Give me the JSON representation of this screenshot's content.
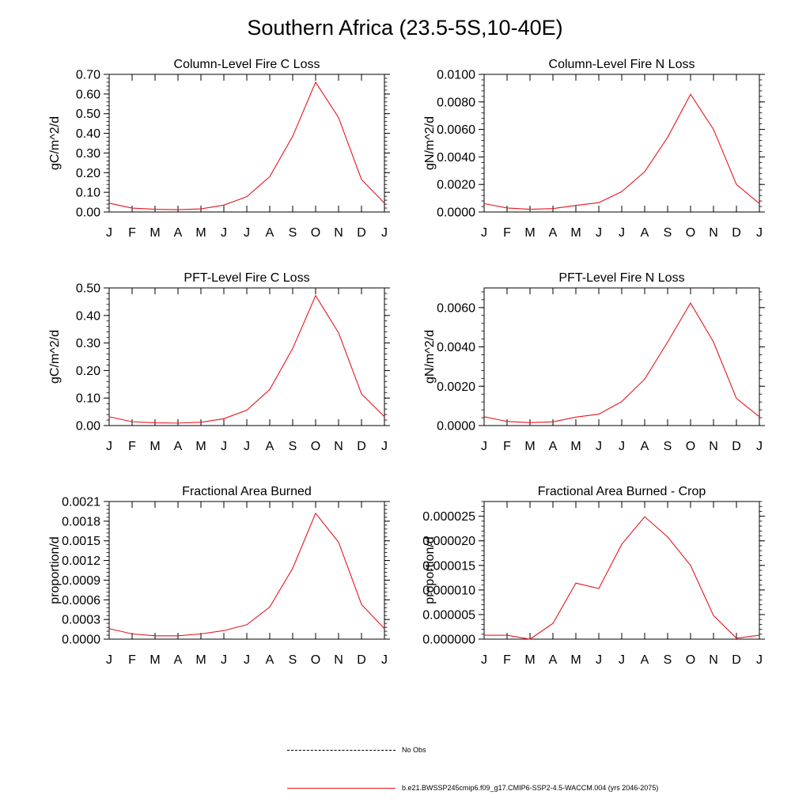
{
  "figure": {
    "title": "Southern Africa (23.5-5S,10-40E)",
    "line_color": "#e8141e",
    "legend": [
      {
        "label": "No Obs",
        "style": "dashed",
        "color": "#000000"
      },
      {
        "label": "b.e21.BWSSP245cmip6.f09_g17.CMIP6-SSP2-4.5-WACCM.004 (yrs 2046-2075)",
        "style": "solid",
        "color": "#e8141e"
      }
    ]
  },
  "chart_data": [
    {
      "type": "line",
      "title": "Column-Level Fire C Loss",
      "ylabel": "gC/m^2/d",
      "ylim": [
        0,
        0.7
      ],
      "yticks": [
        0,
        0.1,
        0.2,
        0.3,
        0.4,
        0.5,
        0.6,
        0.7
      ],
      "ytick_labels": [
        "0.00",
        "0.10",
        "0.20",
        "0.30",
        "0.40",
        "0.50",
        "0.60",
        "0.70"
      ],
      "categories": [
        "J",
        "F",
        "M",
        "A",
        "M",
        "J",
        "J",
        "A",
        "S",
        "O",
        "N",
        "D",
        "J"
      ],
      "values": [
        0.045,
        0.02,
        0.014,
        0.012,
        0.016,
        0.035,
        0.078,
        0.18,
        0.385,
        0.66,
        0.48,
        0.165,
        0.045
      ]
    },
    {
      "type": "line",
      "title": "Column-Level Fire N Loss",
      "ylabel": "gN/m^2/d",
      "ylim": [
        0,
        0.01
      ],
      "yticks": [
        0,
        0.002,
        0.004,
        0.006,
        0.008,
        0.01
      ],
      "ytick_labels": [
        "0.0000",
        "0.0020",
        "0.0040",
        "0.0060",
        "0.0080",
        "0.0100"
      ],
      "categories": [
        "J",
        "F",
        "M",
        "A",
        "M",
        "J",
        "J",
        "A",
        "S",
        "O",
        "N",
        "D",
        "J"
      ],
      "values": [
        0.00061,
        0.00029,
        0.0002,
        0.00025,
        0.00048,
        0.00068,
        0.00148,
        0.00293,
        0.00542,
        0.00855,
        0.006,
        0.002,
        0.00061
      ]
    },
    {
      "type": "line",
      "title": "PFT-Level Fire C Loss",
      "ylabel": "gC/m^2/d",
      "ylim": [
        0,
        0.5
      ],
      "yticks": [
        0,
        0.1,
        0.2,
        0.3,
        0.4,
        0.5
      ],
      "ytick_labels": [
        "0.00",
        "0.10",
        "0.20",
        "0.30",
        "0.40",
        "0.50"
      ],
      "categories": [
        "J",
        "F",
        "M",
        "A",
        "M",
        "J",
        "J",
        "A",
        "S",
        "O",
        "N",
        "D",
        "J"
      ],
      "values": [
        0.032,
        0.014,
        0.01,
        0.009,
        0.012,
        0.025,
        0.056,
        0.131,
        0.28,
        0.472,
        0.337,
        0.115,
        0.032
      ]
    },
    {
      "type": "line",
      "title": "PFT-Level Fire N Loss",
      "ylabel": "gN/m^2/d",
      "ylim": [
        0,
        0.007
      ],
      "yticks": [
        0,
        0.002,
        0.004,
        0.006
      ],
      "ytick_labels": [
        "0.0000",
        "0.0020",
        "0.0040",
        "0.0060"
      ],
      "categories": [
        "J",
        "F",
        "M",
        "A",
        "M",
        "J",
        "J",
        "A",
        "S",
        "O",
        "N",
        "D",
        "J"
      ],
      "values": [
        0.00045,
        0.00021,
        0.00015,
        0.00019,
        0.00043,
        0.00058,
        0.00122,
        0.00236,
        0.00425,
        0.00623,
        0.00425,
        0.00138,
        0.00045
      ]
    },
    {
      "type": "line",
      "title": "Fractional Area Burned",
      "ylabel": "proportion/d",
      "ylim": [
        0,
        0.0021
      ],
      "yticks": [
        0,
        0.0003,
        0.0006,
        0.0009,
        0.0012,
        0.0015,
        0.0018,
        0.0021
      ],
      "ytick_labels": [
        "0.0000",
        "0.0003",
        "0.0006",
        "0.0009",
        "0.0012",
        "0.0015",
        "0.0018",
        "0.0021"
      ],
      "categories": [
        "J",
        "F",
        "M",
        "A",
        "M",
        "J",
        "J",
        "A",
        "S",
        "O",
        "N",
        "D",
        "J"
      ],
      "values": [
        0.00016,
        8e-05,
        5e-05,
        5e-05,
        8e-05,
        0.00013,
        0.00022,
        0.00049,
        0.00108,
        0.00192,
        0.00148,
        0.00053,
        0.00016
      ]
    },
    {
      "type": "line",
      "title": "Fractional Area Burned - Crop",
      "ylabel": "proportion/d",
      "ylim": [
        0,
        2.8e-05
      ],
      "yticks": [
        0,
        5e-06,
        1e-05,
        1.5e-05,
        2e-05,
        2.5e-05
      ],
      "ytick_labels": [
        "0.000000",
        "0.000005",
        "0.000010",
        "0.000015",
        "0.000020",
        "0.000025"
      ],
      "categories": [
        "J",
        "F",
        "M",
        "A",
        "M",
        "J",
        "J",
        "A",
        "S",
        "O",
        "N",
        "D",
        "J"
      ],
      "values": [
        8e-07,
        8e-07,
        0.0,
        3.2e-06,
        1.14e-05,
        1.03e-05,
        1.93e-05,
        2.49e-05,
        2.08e-05,
        1.5e-05,
        4.8e-06,
        2e-07,
        8e-07
      ]
    }
  ]
}
